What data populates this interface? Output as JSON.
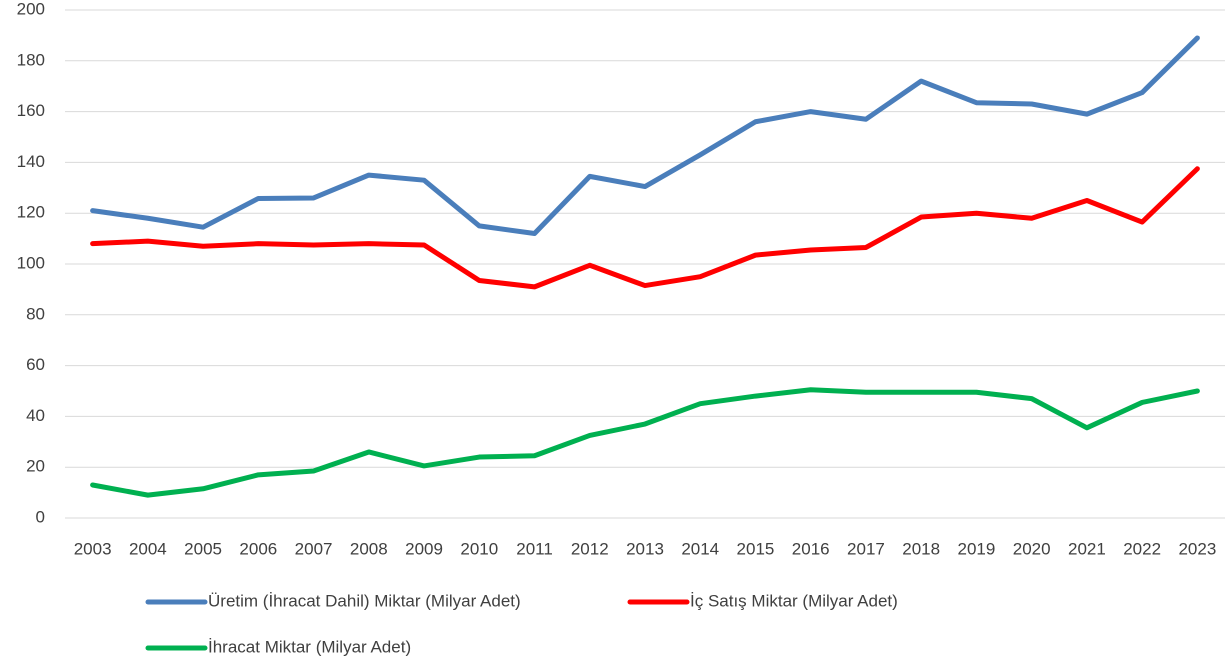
{
  "chart_data": {
    "type": "line",
    "categories": [
      "2003",
      "2004",
      "2005",
      "2006",
      "2007",
      "2008",
      "2009",
      "2010",
      "2011",
      "2012",
      "2013",
      "2014",
      "2015",
      "2016",
      "2017",
      "2018",
      "2019",
      "2020",
      "2021",
      "2022",
      "2023"
    ],
    "series": [
      {
        "name": "Üretim (İhracat Dahil) Miktar (Milyar Adet)",
        "color": "#4a7ebb",
        "values": [
          121,
          118,
          114.5,
          125.8,
          126,
          135,
          133,
          115,
          112,
          134.5,
          130.5,
          143,
          156,
          160,
          157,
          172,
          163.5,
          163,
          159,
          167.5,
          189
        ]
      },
      {
        "name": "İç Satış  Miktar (Milyar Adet)",
        "color": "#ff0000",
        "values": [
          108,
          109,
          107,
          108,
          107.5,
          108,
          107.5,
          93.5,
          91,
          99.5,
          91.5,
          95,
          103.5,
          105.5,
          106.5,
          118.5,
          120,
          118,
          125,
          116.5,
          137.5
        ]
      },
      {
        "name": "İhracat Miktar (Milyar Adet)",
        "color": "#00b050",
        "values": [
          13,
          9,
          11.5,
          17,
          18.5,
          26,
          20.5,
          24,
          24.5,
          32.5,
          37,
          45,
          48,
          50.5,
          49.5,
          49.5,
          49.5,
          47,
          35.5,
          45.5,
          50
        ]
      }
    ],
    "ylim": [
      0,
      200
    ],
    "yticks": [
      0,
      20,
      40,
      60,
      80,
      100,
      120,
      140,
      160,
      180,
      200
    ],
    "grid": true
  }
}
